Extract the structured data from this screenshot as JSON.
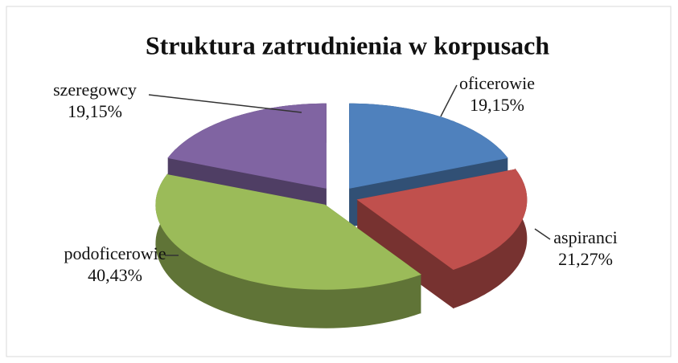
{
  "chart_data": {
    "type": "pie",
    "title": "Struktura zatrudnienia w korpusach",
    "categories": [
      "oficerowie",
      "aspiranci",
      "podoficerowie",
      "szeregowcy"
    ],
    "values": [
      19.15,
      21.27,
      40.43,
      19.15
    ],
    "value_labels": [
      "19,15%",
      "21,27%",
      "40,43%",
      "19,15%"
    ],
    "colors": [
      "#4f81bd",
      "#c0504d",
      "#9bbb59",
      "#8064a2"
    ]
  }
}
